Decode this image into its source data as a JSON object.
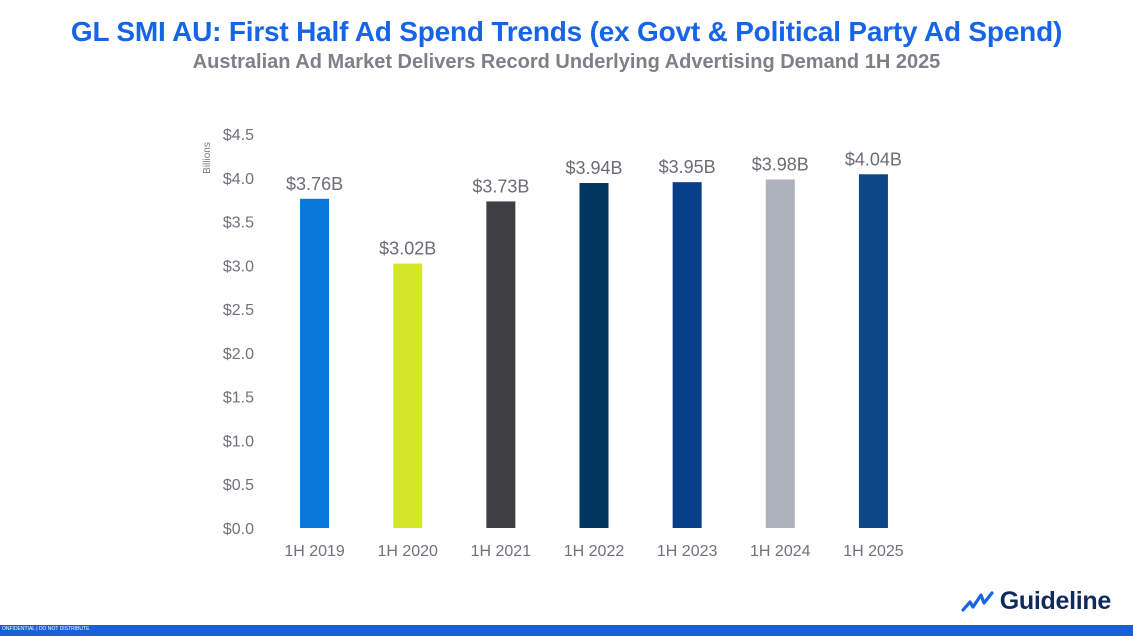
{
  "title": "GL SMI AU: First Half Ad Spend Trends (ex Govt & Political Party Ad Spend)",
  "subtitle": "Australian Ad Market Delivers Record Underlying Advertising Demand 1H 2025",
  "footer_text": "ONFIDENTIAL | DO NOT DISTRIBUTE",
  "logo_text": "Guideline",
  "colors": {
    "title": "#1565e6",
    "subtitle": "#7d8088",
    "footer": "#1a5fd6"
  },
  "chart_data": {
    "type": "bar",
    "categories": [
      "1H 2019",
      "1H 2020",
      "1H 2021",
      "1H 2022",
      "1H 2023",
      "1H 2024",
      "1H 2025"
    ],
    "values": [
      3.76,
      3.02,
      3.73,
      3.94,
      3.95,
      3.98,
      4.04
    ],
    "data_labels": [
      "$3.76B",
      "$3.02B",
      "$3.73B",
      "$3.94B",
      "$3.95B",
      "$3.98B",
      "$4.04B"
    ],
    "bar_colors": [
      "#0a78d8",
      "#d4e628",
      "#3f3f42",
      "#00365f",
      "#063e8a",
      "#acb1bc",
      "#0c4887"
    ],
    "ylabel": "Billions",
    "ylim": [
      0,
      4.5
    ],
    "yticks": [
      0,
      0.5,
      1.0,
      1.5,
      2.0,
      2.5,
      3.0,
      3.5,
      4.0,
      4.5
    ],
    "ytick_labels": [
      "$0.0",
      "$0.5",
      "$1.0",
      "$1.5",
      "$2.0",
      "$2.5",
      "$3.0",
      "$3.5",
      "$4.0",
      "$4.5"
    ],
    "grid": false,
    "legend": "none"
  }
}
